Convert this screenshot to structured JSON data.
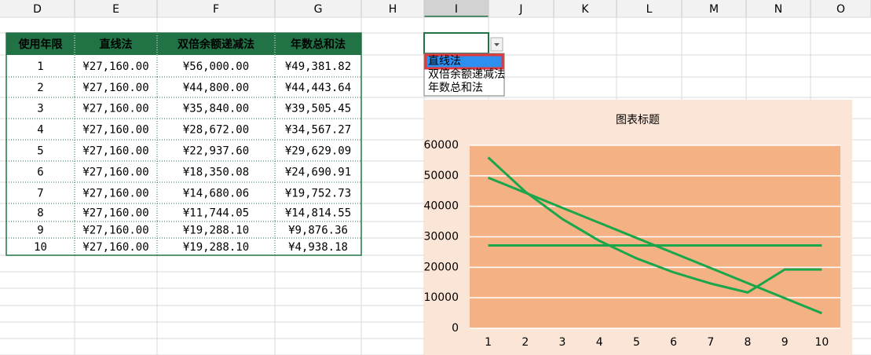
{
  "column_headers": [
    "D",
    "E",
    "F",
    "G",
    "H",
    "I",
    "J",
    "K",
    "L",
    "M",
    "N",
    "O"
  ],
  "table": {
    "header": [
      "使用年限",
      "直线法",
      "双倍余额递减法",
      "年数总和法"
    ],
    "rows": [
      [
        "1",
        "¥27,160.00",
        "¥56,000.00",
        "¥49,381.82"
      ],
      [
        "2",
        "¥27,160.00",
        "¥44,800.00",
        "¥44,443.64"
      ],
      [
        "3",
        "¥27,160.00",
        "¥35,840.00",
        "¥39,505.45"
      ],
      [
        "4",
        "¥27,160.00",
        "¥28,672.00",
        "¥34,567.27"
      ],
      [
        "5",
        "¥27,160.00",
        "¥22,937.60",
        "¥29,629.09"
      ],
      [
        "6",
        "¥27,160.00",
        "¥18,350.08",
        "¥24,690.91"
      ],
      [
        "7",
        "¥27,160.00",
        "¥14,680.06",
        "¥19,752.73"
      ],
      [
        "8",
        "¥27,160.00",
        "¥11,744.05",
        "¥14,814.55"
      ],
      [
        "9",
        "¥27,160.00",
        "¥19,288.10",
        "¥9,876.36"
      ],
      [
        "10",
        "¥27,160.00",
        "¥19,288.10",
        "¥4,938.18"
      ]
    ]
  },
  "dropdown": {
    "items": [
      "直线法",
      "双倍余额递减法",
      "年数总和法"
    ],
    "selected": 0
  },
  "chart_data": {
    "type": "line",
    "title": "图表标题",
    "categories": [
      "1",
      "2",
      "3",
      "4",
      "5",
      "6",
      "7",
      "8",
      "9",
      "10"
    ],
    "series": [
      {
        "color": "#1aa64a",
        "values": [
          27160,
          27160,
          27160,
          27160,
          27160,
          27160,
          27160,
          27160,
          27160,
          27160
        ]
      },
      {
        "color": "#1aa64a",
        "values": [
          56000,
          44800,
          35840,
          28672,
          22937.6,
          18350.08,
          14680.06,
          11744.05,
          19288.1,
          19288.1
        ]
      },
      {
        "color": "#1aa64a",
        "values": [
          49381.82,
          44443.64,
          39505.45,
          34567.27,
          29629.09,
          24690.91,
          19752.73,
          14814.55,
          9876.36,
          4938.18
        ]
      }
    ],
    "ylim": [
      0,
      60000
    ],
    "yticks": [
      0,
      10000,
      20000,
      30000,
      40000,
      50000,
      60000
    ],
    "grid": true
  }
}
